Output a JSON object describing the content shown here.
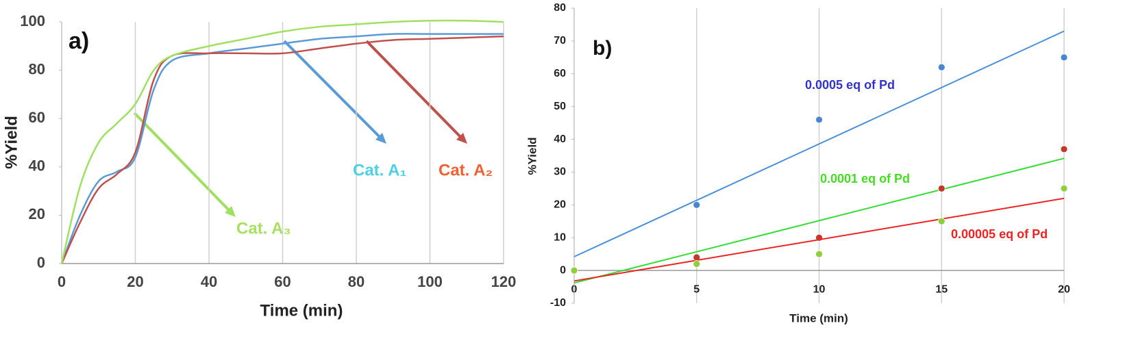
{
  "chart_data": [
    {
      "type": "line",
      "title": "a)",
      "xlabel": "Time (min)",
      "ylabel": "%Yield",
      "x": [
        0,
        5,
        10,
        15,
        20,
        25,
        30,
        40,
        50,
        60,
        70,
        80,
        90,
        100,
        110,
        120
      ],
      "series": [
        {
          "name": "Cat. A₁",
          "color": "#5b9bd5",
          "label_color": "#4dd0e1",
          "values": [
            0,
            20,
            34,
            38,
            44,
            72,
            84,
            87,
            89,
            91,
            93,
            94,
            95,
            95,
            95,
            95
          ]
        },
        {
          "name": "Cat. A₂",
          "color": "#c0504d",
          "label_color": "#f06030",
          "values": [
            0,
            17,
            31,
            37,
            46,
            76,
            86,
            87,
            87,
            87,
            89,
            91,
            92.5,
            93,
            93.5,
            94
          ]
        },
        {
          "name": "Cat. A₃",
          "color": "#a0e060",
          "label_color": "#a8e060",
          "values": [
            0,
            32,
            50,
            58,
            66,
            80,
            86,
            90,
            93,
            96,
            98,
            99,
            100,
            100.5,
            100.5,
            100
          ]
        }
      ],
      "xlim": [
        0,
        120
      ],
      "xticks": [
        0,
        20,
        40,
        60,
        80,
        100,
        120
      ],
      "ylim": [
        0,
        100
      ],
      "yticks": [
        0,
        20,
        40,
        60,
        80,
        100
      ],
      "grid": "x"
    },
    {
      "type": "scatter",
      "title": "b)",
      "xlabel": "Time (min)",
      "ylabel": "%Yield",
      "trendline": "linear",
      "x": [
        0,
        5,
        10,
        15,
        20
      ],
      "series": [
        {
          "name": "0.0005 eq of Pd",
          "color": "#4a90d9",
          "label_color": "#3333cc",
          "marker_color": "#4a86d0",
          "values": [
            0,
            20,
            46,
            62,
            65
          ]
        },
        {
          "name": "0.0001 eq of Pd",
          "color": "#33dd33",
          "label_color": "#44dd22",
          "marker_color": "#c0392b",
          "values": [
            0,
            4,
            10,
            25,
            37
          ]
        },
        {
          "name": "0.00005 eq of Pd",
          "color": "#ee2222",
          "label_color": "#ee2222",
          "marker_color": "#8fcf3c",
          "values": [
            0,
            2,
            5,
            15,
            25
          ]
        }
      ],
      "xlim": [
        0,
        20
      ],
      "xticks": [
        0,
        5,
        10,
        15,
        20
      ],
      "ylim": [
        -10,
        80
      ],
      "yticks": [
        -10,
        0,
        10,
        20,
        30,
        40,
        50,
        60,
        70,
        80
      ],
      "grid": "x"
    }
  ]
}
